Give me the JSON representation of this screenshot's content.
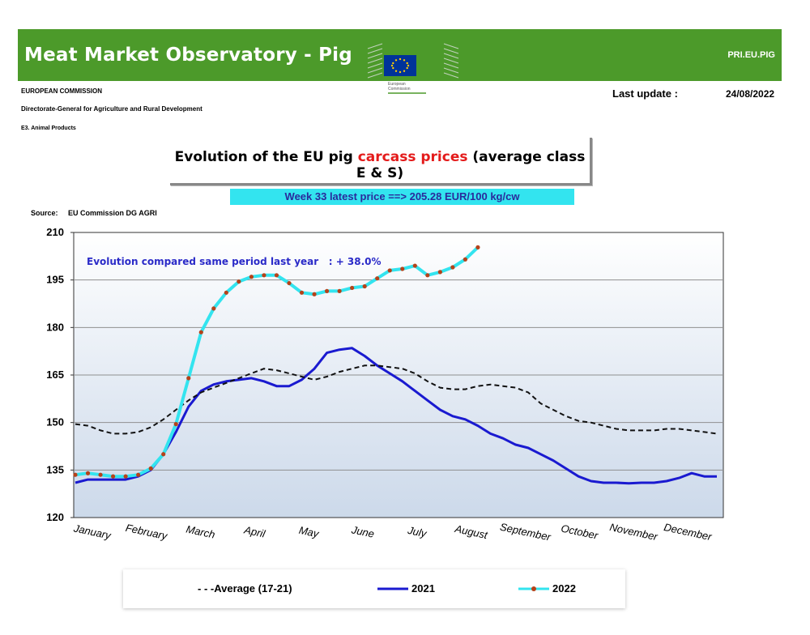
{
  "header": {
    "title": "Meat Market Observatory - Pig",
    "code": "PRI.EU.PIG",
    "org": "EUROPEAN COMMISSION",
    "dg": "Directorate-General for Agriculture and Rural Development",
    "unit": "E3. Animal Products",
    "logo_text_1": "European",
    "logo_text_2": "Commission",
    "update_label": "Last update :",
    "update_date": "24/08/2022"
  },
  "title_part1": "Evolution of the EU pig ",
  "title_highlight": "carcass prices",
  "title_part2": " (average class E & S)",
  "latest_price": "Week 33 latest price ==>  205.28 EUR/100 kg/cw",
  "source_label": "Source:",
  "source_value": "EU Commission DG AGRI",
  "colors": {
    "banner": "#4c9a2a",
    "title_highlight": "#e41b1b",
    "price_box": "#33e4ef",
    "series_avg": "#111111",
    "series_2021": "#1a1ad0",
    "series_2022": "#33e4ef",
    "marker_2022": "#b5421a",
    "annotation": "#2a2ac8"
  },
  "chart_data": {
    "type": "line",
    "title": "Evolution of the EU pig carcass prices (average class E & S)",
    "annotation": "Evolution compared same period last year   : + 38.0%",
    "ylim": [
      120,
      210
    ],
    "yticks": [
      120,
      135,
      150,
      165,
      180,
      195,
      210
    ],
    "xlim": [
      1,
      52
    ],
    "x_tick_labels": [
      "January",
      "February",
      "March",
      "April",
      "May",
      "June",
      "July",
      "August",
      "September",
      "October",
      "November",
      "December"
    ],
    "grid": true,
    "legend_position": "bottom",
    "series": [
      {
        "name": "Average (17-21)",
        "style": "dashed",
        "x": [
          1,
          2,
          3,
          4,
          5,
          6,
          7,
          8,
          9,
          10,
          11,
          12,
          13,
          14,
          15,
          16,
          17,
          18,
          19,
          20,
          21,
          22,
          23,
          24,
          25,
          26,
          27,
          28,
          29,
          30,
          31,
          32,
          33,
          34,
          35,
          36,
          37,
          38,
          39,
          40,
          41,
          42,
          43,
          44,
          45,
          46,
          47,
          48,
          49,
          50,
          51,
          52
        ],
        "values": [
          149.5,
          149,
          147.5,
          146.5,
          146.5,
          147,
          148.5,
          151,
          154,
          157,
          159.5,
          161,
          162.5,
          164,
          165.5,
          167,
          166.5,
          165.5,
          164.5,
          163.5,
          164.5,
          166,
          167,
          168,
          168,
          167.5,
          167,
          165.5,
          163,
          161,
          160.5,
          160.5,
          161.5,
          162,
          161.5,
          161,
          159.5,
          156,
          154,
          152,
          150.5,
          150,
          149,
          148,
          147.5,
          147.5,
          147.5,
          148,
          148,
          147.5,
          147,
          146.5
        ]
      },
      {
        "name": "2021",
        "style": "solid",
        "x": [
          1,
          2,
          3,
          4,
          5,
          6,
          7,
          8,
          9,
          10,
          11,
          12,
          13,
          14,
          15,
          16,
          17,
          18,
          19,
          20,
          21,
          22,
          23,
          24,
          25,
          26,
          27,
          28,
          29,
          30,
          31,
          32,
          33,
          34,
          35,
          36,
          37,
          38,
          39,
          40,
          41,
          42,
          43,
          44,
          45,
          46,
          47,
          48,
          49,
          50,
          51,
          52
        ],
        "values": [
          131,
          132,
          132,
          132,
          132,
          133,
          135,
          140,
          147,
          155,
          160,
          162,
          163,
          163.5,
          164,
          163,
          161.5,
          161.5,
          163.5,
          167,
          172,
          173,
          173.5,
          171,
          168,
          165.5,
          163,
          160,
          157,
          154,
          152,
          151,
          149,
          146.5,
          145,
          143,
          142,
          140,
          138,
          135.5,
          133,
          131.5,
          131,
          131,
          130.8,
          131,
          131,
          131.5,
          132.5,
          134,
          133,
          133
        ]
      },
      {
        "name": "2022",
        "style": "solid-markers",
        "x": [
          1,
          2,
          3,
          4,
          5,
          6,
          7,
          8,
          9,
          10,
          11,
          12,
          13,
          14,
          15,
          16,
          17,
          18,
          19,
          20,
          21,
          22,
          23,
          24,
          25,
          26,
          27,
          28,
          29,
          30,
          31,
          32,
          33
        ],
        "values": [
          133.5,
          134,
          133.5,
          133,
          133,
          133.5,
          135.5,
          140,
          149.5,
          164,
          178.5,
          186,
          191,
          194.5,
          196,
          196.5,
          196.5,
          194,
          191,
          190.5,
          191.5,
          191.5,
          192.5,
          193,
          195.5,
          198,
          198.5,
          199.5,
          196.5,
          197.5,
          199,
          201.5,
          205.3
        ]
      }
    ]
  },
  "legend": [
    {
      "label": "- - -Average (17-21)"
    },
    {
      "label": "2021"
    },
    {
      "label": "2022"
    }
  ]
}
